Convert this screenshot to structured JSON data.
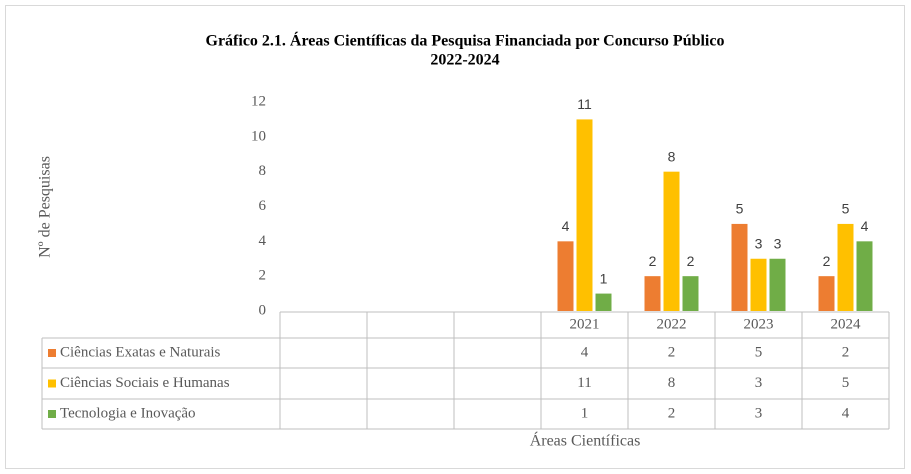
{
  "chart_data": {
    "type": "bar",
    "title": "Gráfico 2.1. Áreas Científicas da Pesquisa Financiada por Concurso Público",
    "subtitle": "2022-2024",
    "y_label": "Nº de Pesquisas",
    "x_label": "Áreas Científicas",
    "categories": [
      null,
      null,
      null,
      "2021",
      "2022",
      "2023",
      "2024"
    ],
    "series": [
      {
        "name": "Ciências Exatas e Naturais",
        "color": "#ed7d31",
        "values": [
          null,
          null,
          null,
          4,
          2,
          5,
          2
        ]
      },
      {
        "name": "Ciências Sociais e Humanas",
        "color": "#ffc000",
        "values": [
          null,
          null,
          null,
          11,
          8,
          3,
          5
        ]
      },
      {
        "name": "Tecnologia e Inovação",
        "color": "#70ad47",
        "values": [
          null,
          null,
          null,
          1,
          2,
          3,
          4
        ]
      }
    ],
    "ylim": [
      0,
      12
    ],
    "yticks": [
      0,
      2,
      4,
      6,
      8,
      10,
      12
    ],
    "grid": false,
    "data_table": true
  }
}
